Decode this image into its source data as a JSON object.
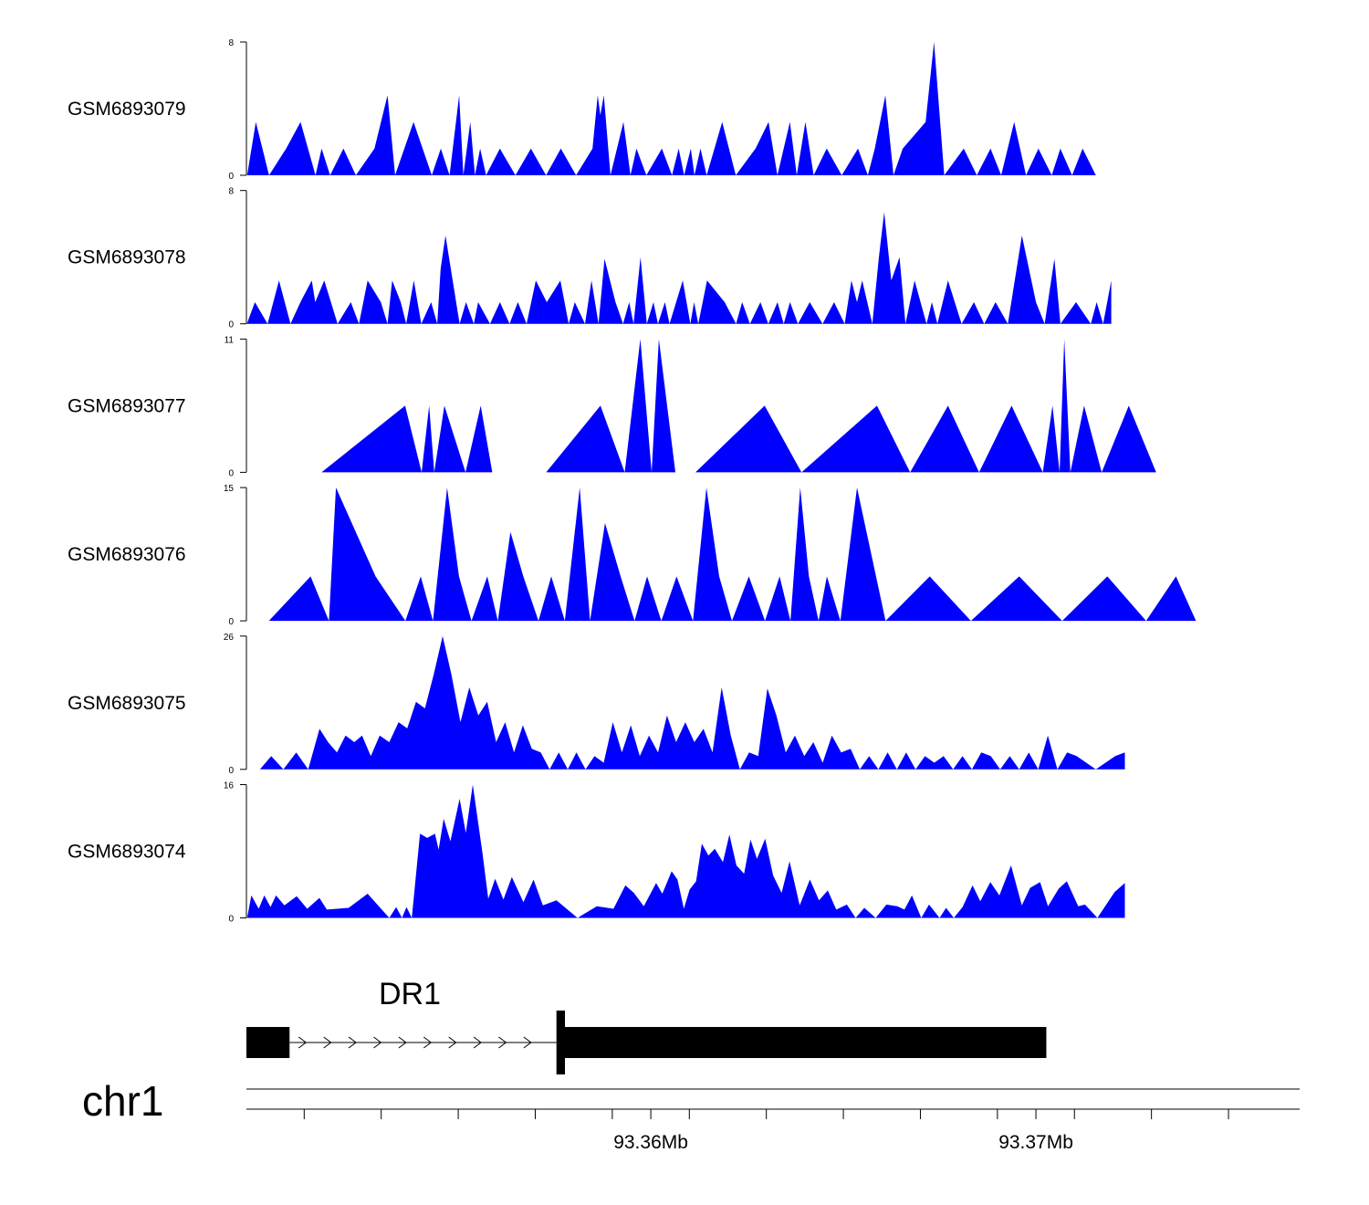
{
  "colors": {
    "coverage_fill": "#0000FF",
    "gene_fill": "#000000",
    "axis": "#000000"
  },
  "chart_data": {
    "type": "area",
    "title": "",
    "x_range_bp": [
      93349500,
      93376800
    ],
    "tracks": [
      {
        "name": "GSM6893079",
        "ylim": [
          0,
          8
        ],
        "ytick_labels": [
          "0",
          "8"
        ],
        "x": [
          93349519,
          93349744,
          93350087,
          93350532,
          93350906,
          93351295,
          93351453,
          93351672,
          93352020,
          93352342,
          93352826,
          93353164,
          93353360,
          93353838,
          93354314,
          93354547,
          93354775,
          93355024,
          93355134,
          93355312,
          93355433,
          93355568,
          93355724,
          93356080,
          93356487,
          93356887,
          93357281,
          93357663,
          93358059,
          93358486,
          93358621,
          93358691,
          93358781,
          93358954,
          93359290,
          93359471,
          93359628,
          93359884,
          93360287,
          93360551,
          93360723,
          93360865,
          93361038,
          93361134,
          93361289,
          93361451,
          93361853,
          93362208,
          93362719,
          93363057,
          93363287,
          93363611,
          93363789,
          93364014,
          93364229,
          93364567,
          93364958,
          93365380,
          93365635,
          93365817,
          93366092,
          93366301,
          93366541,
          93367136,
          93367355,
          93367620,
          93368127,
          93368466,
          93368822,
          93369097,
          93369434,
          93369743,
          93370066,
          93370411,
          93370633,
          93370940,
          93371213,
          93371556,
          93371946
        ],
        "y": [
          0,
          3.2,
          0,
          1.6,
          3.2,
          0,
          1.6,
          0,
          1.6,
          0,
          1.6,
          4.8,
          0,
          3.2,
          0,
          1.6,
          0,
          4.8,
          0,
          3.2,
          0,
          1.6,
          0,
          1.6,
          0,
          1.6,
          0,
          1.6,
          0,
          1.6,
          4.8,
          3.6,
          4.8,
          0,
          3.2,
          0,
          1.6,
          0,
          1.6,
          0,
          1.6,
          0,
          1.6,
          0,
          1.6,
          0,
          3.2,
          0,
          1.6,
          3.2,
          0,
          3.2,
          0,
          3.2,
          0,
          1.6,
          0,
          1.6,
          0,
          1.6,
          4.8,
          0,
          1.6,
          3.2,
          8.0,
          0,
          1.6,
          0,
          1.6,
          0,
          3.2,
          0,
          1.6,
          0,
          1.6,
          0,
          1.6,
          0,
          0
        ]
      },
      {
        "name": "GSM6893078",
        "ylim": [
          0,
          8
        ],
        "ytick_labels": [
          "0",
          "8"
        ],
        "x": [
          93349512,
          93349721,
          93350050,
          93350346,
          93350645,
          93350902,
          93351196,
          93351286,
          93351522,
          93351868,
          93352211,
          93352421,
          93352647,
          93352990,
          93353163,
          93353284,
          93353508,
          93353649,
          93353846,
          93354041,
          93354297,
          93354455,
          93354542,
          93354669,
          93355036,
          93355202,
          93355406,
          93355518,
          93355825,
          93356084,
          93356332,
          93356547,
          93356775,
          93357014,
          93357298,
          93357653,
          93357868,
          93358027,
          93358292,
          93358459,
          93358642,
          93358800,
          93359083,
          93359281,
          93359439,
          93359553,
          93359733,
          93359896,
          93360070,
          93360185,
          93360368,
          93360487,
          93360829,
          93361027,
          93361123,
          93361233,
          93361461,
          93361918,
          93362215,
          93362372,
          93362574,
          93362846,
          93363051,
          93363291,
          93363450,
          93363615,
          93363821,
          93364127,
          93364460,
          93364760,
          93365034,
          93365210,
          93365355,
          93365490,
          93365752,
          93365923,
          93366059,
          93366245,
          93366458,
          93366612,
          93366850,
          93367159,
          93367299,
          93367441,
          93367716,
          93368070,
          93368389,
          93368658,
          93368951,
          93369270,
          93369637,
          93370002,
          93370226,
          93370479,
          93370637,
          93371042,
          93371426,
          93371578,
          93371745,
          93371956
        ],
        "y": [
          0,
          1.3,
          0,
          2.6,
          0,
          1.3,
          2.6,
          1.3,
          2.6,
          0,
          1.3,
          0,
          2.6,
          1.3,
          0,
          2.6,
          1.3,
          0,
          2.6,
          0,
          1.3,
          0,
          3.3,
          5.3,
          0,
          1.3,
          0,
          1.3,
          0,
          1.3,
          0,
          1.3,
          0,
          2.6,
          1.3,
          2.6,
          0,
          1.3,
          0,
          2.6,
          0,
          3.9,
          1.3,
          0,
          1.3,
          0,
          4.0,
          0,
          1.3,
          0,
          1.3,
          0,
          2.6,
          0,
          1.3,
          0,
          2.6,
          1.3,
          0,
          1.3,
          0,
          1.3,
          0,
          1.3,
          0,
          1.3,
          0,
          1.3,
          0,
          1.3,
          0,
          2.6,
          1.3,
          2.6,
          0,
          4.0,
          6.7,
          2.6,
          4.0,
          0,
          2.6,
          0,
          1.3,
          0,
          2.6,
          0,
          1.3,
          0,
          1.3,
          0,
          5.3,
          1.3,
          0,
          3.9,
          0,
          1.3,
          0,
          1.3,
          0,
          2.6
        ],
        "_note": ""
      },
      {
        "name": "GSM6893077",
        "ylim": [
          0,
          11
        ],
        "ytick_labels": [
          "0",
          "11"
        ],
        "x": [
          93351450,
          93353622,
          93354049,
          93354245,
          93354378,
          93354641,
          93355189,
          93355584,
          93355884,
          93357282,
          93358693,
          93359322,
          93359727,
          93360022,
          93360209,
          93360637,
          93360986,
          93361159,
          93362955,
          93363913,
          93365874,
          93366733,
          93367716,
          93368524,
          93369369,
          93370178,
          93370431,
          93370616,
          93370735,
          93370895,
          93371251,
          93371707,
          93372411,
          93373123
        ],
        "y": [
          0,
          5.5,
          0,
          5.5,
          0,
          5.5,
          0,
          5.5,
          0,
          0,
          5.5,
          0,
          11,
          0,
          11,
          0,
          0,
          0,
          5.5,
          0,
          5.5,
          0,
          5.5,
          0,
          5.5,
          0,
          5.5,
          0,
          11,
          0,
          5.5,
          0,
          5.5,
          0
        ]
      },
      {
        "name": "GSM6893076",
        "ylim": [
          0,
          15
        ],
        "ytick_labels": [
          "0",
          "15"
        ],
        "x": [
          93350084,
          93351166,
          93351643,
          93351825,
          93352854,
          93353629,
          93354027,
          93354343,
          93354710,
          93355020,
          93355343,
          93355754,
          93356028,
          93356355,
          93356689,
          93357083,
          93357414,
          93357769,
          93358154,
          93358423,
          93358812,
          93359216,
          93359579,
          93359903,
          93360274,
          93360668,
          93361096,
          93361443,
          93361775,
          93362107,
          93362545,
          93362965,
          93363345,
          93363626,
          93363879,
          93364104,
          93364357,
          93364571,
          93364922,
          93365353,
          93366095,
          93367243,
          93368312,
          93369566,
          93370682,
          93371855,
          93372861,
          93373637,
          93374155
        ],
        "y": [
          0,
          5,
          0,
          15,
          5,
          0,
          5,
          0,
          15,
          5,
          0,
          5,
          0,
          10,
          5,
          0,
          5,
          0,
          15,
          0,
          11,
          5,
          0,
          5,
          0,
          5,
          0,
          15,
          5,
          0,
          5,
          0,
          5,
          0,
          15,
          5,
          0,
          5,
          0,
          15,
          0,
          5,
          0,
          5,
          0,
          5,
          0,
          5,
          0
        ],
        "_note": ""
      },
      {
        "name": "GSM6893075",
        "ylim": [
          0,
          26
        ],
        "ytick_labels": [
          "0",
          "26"
        ],
        "x": [
          93349850,
          93350144,
          93350460,
          93350795,
          93351105,
          93351398,
          93351622,
          93351850,
          93352074,
          93352302,
          93352503,
          93352731,
          93352961,
          93353209,
          93353451,
          93353675,
          93353904,
          93354136,
          93354363,
          93354594,
          93354822,
          93355057,
          93355288,
          93355522,
          93355751,
          93355983,
          93356218,
          93356449,
          93356678,
          93356910,
          93357142,
          93357373,
          93357609,
          93357843,
          93358070,
          93358307,
          93358539,
          93358777,
          93359014,
          93359249,
          93359482,
          93359714,
          93359952,
          93360188,
          93360420,
          93360658,
          93360897,
          93361132,
          93361367,
          93361602,
          93361839,
          93362077,
          93362314,
          93362552,
          93362789,
          93363027,
          93363261,
          93363502,
          93363743,
          93363984,
          93364222,
          93364463,
          93364703,
          93364944,
          93365188,
          93365427,
          93365668,
          93365908,
          93366150,
          93366390,
          93366632,
          93366875,
          93367119,
          93367360,
          93367604,
          93367849,
          93368093,
          93368337,
          93368582,
          93368828,
          93369073,
          93369320,
          93369566,
          93369815,
          93370061,
          93370309,
          93370558,
          93370808,
          93371057,
          93371306,
          93371556,
          93371807,
          93372058,
          93372310
        ],
        "y": [
          0,
          2.6,
          0,
          3.3,
          0,
          7.9,
          5.3,
          3.3,
          6.6,
          5.3,
          6.6,
          2.6,
          6.6,
          5.3,
          9.2,
          8.0,
          13.2,
          11.9,
          18.5,
          26.0,
          18.5,
          9.2,
          16.0,
          10.5,
          13.2,
          5.3,
          9.2,
          3.3,
          8.6,
          4.0,
          3.3,
          0,
          3.3,
          0,
          3.3,
          0,
          2.6,
          1.3,
          9.2,
          3.3,
          8.6,
          2.6,
          6.6,
          3.3,
          10.5,
          5.3,
          9.2,
          5.3,
          7.9,
          3.3,
          16.0,
          6.6,
          0,
          3.3,
          2.6,
          15.8,
          10.5,
          3.3,
          6.6,
          2.6,
          5.3,
          1.3,
          6.6,
          3.3,
          4.0,
          0,
          2.6,
          0,
          3.3,
          0,
          3.3,
          0,
          2.6,
          1.3,
          2.6,
          0,
          2.6,
          0,
          3.3,
          2.6,
          0,
          2.6,
          0,
          3.3,
          0,
          6.6,
          0,
          3.3,
          2.6,
          1.3,
          0,
          1.3,
          2.6,
          3.3
        ],
        "_note": ""
      },
      {
        "name": "GSM6893074",
        "ylim": [
          0,
          16
        ],
        "ytick_labels": [
          "0",
          "16"
        ],
        "x": [
          93349519,
          93349628,
          93349820,
          93349965,
          93350125,
          93350267,
          93350487,
          93350805,
          93351079,
          93351395,
          93351587,
          93352155,
          93352647,
          93353209,
          93353390,
          93353539,
          93353656,
          93353793,
          93354008,
          93354194,
          93354396,
          93354491,
          93354620,
          93354797,
          93355037,
          93355198,
          93355376,
          93355629,
          93355780,
          93355958,
          93356174,
          93356392,
          93356693,
          93356955,
          93357198,
          93357549,
          93358098,
          93358600,
          93359032,
          93359340,
          93359561,
          93359818,
          93360137,
          93360298,
          93360540,
          93360693,
          93360858,
          93361008,
          93361176,
          93361325,
          93361497,
          93361662,
          93361873,
          93362041,
          93362224,
          93362423,
          93362588,
          93362757,
          93362971,
          93363176,
          93363396,
          93363602,
          93363866,
          93364132,
          93364369,
          93364596,
          93364816,
          93365092,
          93365319,
          93365544,
          93365840,
          93366117,
          93366398,
          93366587,
          93366781,
          93367022,
          93367223,
          93367498,
          93367667,
          93367868,
          93368096,
          93368354,
          93368555,
          93368816,
          93369051,
          93369355,
          93369634,
          93369849,
          93370107,
          93370313,
          93370588,
          93370803,
          93371099,
          93371273,
          93371595,
          93372041,
          93372310
        ],
        "y": [
          0,
          2.7,
          1.1,
          2.7,
          1.3,
          2.7,
          1.5,
          2.6,
          1.1,
          2.4,
          1.0,
          1.2,
          2.9,
          0,
          1.3,
          0,
          1.3,
          0,
          10.1,
          9.6,
          10.1,
          8.2,
          11.9,
          9.2,
          14.3,
          10.2,
          16.0,
          7.8,
          2.3,
          4.7,
          2.2,
          4.9,
          1.9,
          4.6,
          1.5,
          2.1,
          0,
          1.4,
          1.1,
          3.9,
          3.0,
          1.4,
          4.2,
          2.9,
          5.6,
          4.6,
          1.1,
          3.4,
          4.4,
          8.9,
          7.5,
          8.3,
          6.7,
          10.0,
          6.3,
          5.3,
          9.4,
          7.1,
          9.5,
          5.1,
          3.0,
          6.8,
          1.5,
          4.6,
          2.1,
          3.3,
          1.0,
          1.6,
          0,
          1.2,
          0,
          1.6,
          1.4,
          1.0,
          2.7,
          0,
          1.6,
          0,
          1.2,
          0,
          1.3,
          3.9,
          2.0,
          4.3,
          2.7,
          6.3,
          1.5,
          3.6,
          4.3,
          1.4,
          3.5,
          4.4,
          1.4,
          1.6,
          0,
          3.1,
          4.2
        ]
      }
    ],
    "gene": {
      "name": "DR1",
      "exons": [
        [
          93349500,
          93350620
        ],
        [
          93357550,
          93357700
        ],
        [
          93357700,
          93370270
        ]
      ],
      "intron_direction": "+"
    },
    "axis": {
      "chromosome": "chr1",
      "tick_labels": [
        "93.36Mb",
        "93.37Mb"
      ],
      "tick_values": [
        93360000,
        93370000
      ],
      "minor_tick_values": [
        93351000,
        93353000,
        93355000,
        93357000,
        93359000,
        93361000,
        93363000,
        93365000,
        93367000,
        93369000,
        93371000,
        93373000,
        93375000
      ]
    }
  }
}
